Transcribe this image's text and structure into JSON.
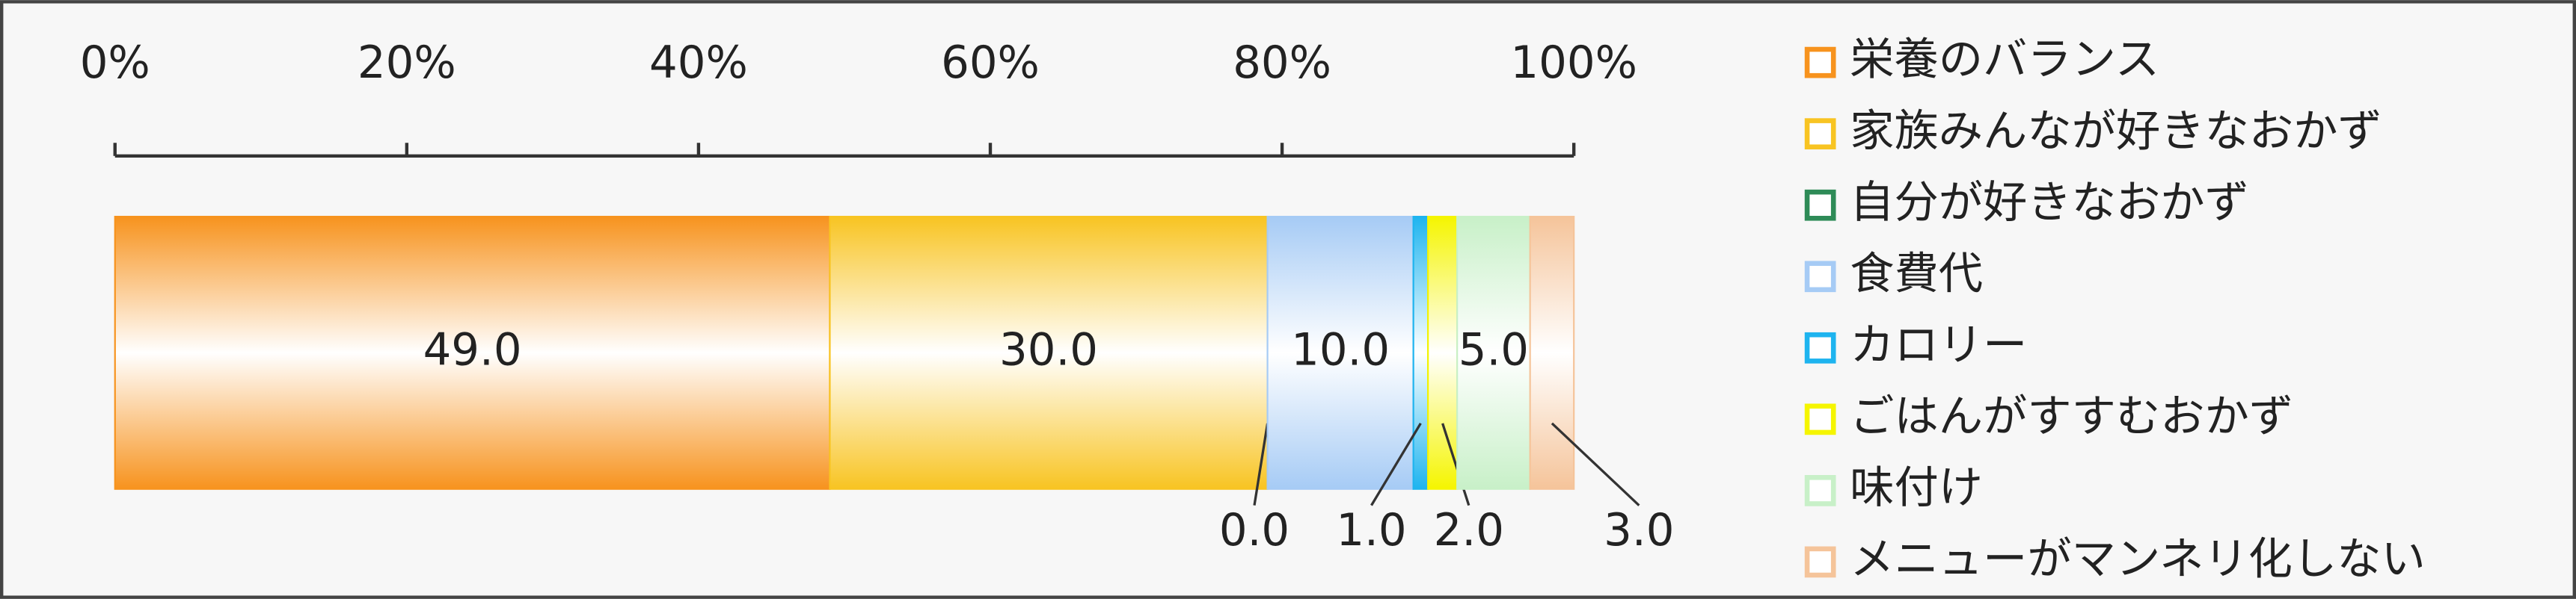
{
  "chart_data": {
    "type": "bar",
    "orientation": "horizontal",
    "stacked": true,
    "categories": [
      null
    ],
    "xlim": [
      0,
      100
    ],
    "xticks": [
      {
        "value": 0,
        "label": "0%"
      },
      {
        "value": 20,
        "label": "20%"
      },
      {
        "value": 40,
        "label": "40%"
      },
      {
        "value": 60,
        "label": "60%"
      },
      {
        "value": 80,
        "label": "80%"
      },
      {
        "value": 100,
        "label": "100%"
      }
    ],
    "legend": "right",
    "series": [
      {
        "name": "栄養のバランス",
        "color": "#f7931e",
        "values": [
          49.0
        ],
        "value_labels": [
          "49.0"
        ]
      },
      {
        "name": "家族みんなが好きなおかず",
        "color": "#f8c422",
        "values": [
          30.0
        ],
        "value_labels": [
          "30.0"
        ]
      },
      {
        "name": "自分が好きなおかず",
        "color": "#2e8b57",
        "values": [
          0.0
        ],
        "value_labels": [
          "0.0"
        ]
      },
      {
        "name": "食費代",
        "color": "#a6cbf5",
        "values": [
          10.0
        ],
        "value_labels": [
          "10.0"
        ]
      },
      {
        "name": "カロリー",
        "color": "#1eb4ef",
        "values": [
          1.0
        ],
        "value_labels": [
          "1.0"
        ]
      },
      {
        "name": "ごはんがすすむおかず",
        "color": "#f5f500",
        "values": [
          2.0
        ],
        "value_labels": [
          "2.0"
        ]
      },
      {
        "name": "味付け",
        "color": "#c8f0c8",
        "values": [
          5.0
        ],
        "value_labels": [
          "5.0"
        ]
      },
      {
        "name": "メニューがマンネリ化しない",
        "color": "#f5c49a",
        "values": [
          3.0
        ],
        "value_labels": [
          "3.0"
        ]
      }
    ]
  }
}
